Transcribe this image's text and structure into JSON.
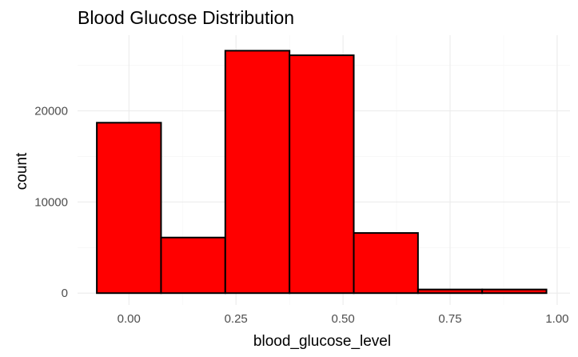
{
  "chart_data": {
    "type": "bar",
    "title": "Blood Glucose Distribution",
    "xlabel": "blood_glucose_level",
    "ylabel": "count",
    "bin_width": 0.15,
    "bin_centers": [
      0.0,
      0.15,
      0.3,
      0.45,
      0.6,
      0.75,
      0.9
    ],
    "values": [
      18700,
      6100,
      26600,
      26100,
      6600,
      400,
      400
    ],
    "xlim": [
      -0.12,
      1.03
    ],
    "ylim": [
      -1300,
      28300
    ],
    "x_ticks": [
      0.0,
      0.25,
      0.5,
      0.75,
      1.0
    ],
    "x_tick_labels": [
      "0.00",
      "0.25",
      "0.50",
      "0.75",
      "1.00"
    ],
    "y_ticks": [
      0,
      10000,
      20000
    ],
    "y_tick_labels": [
      "0",
      "10000",
      "20000"
    ],
    "bar_fill": "#ff0000",
    "bar_outline": "#000000",
    "grid": true,
    "legend": "none"
  }
}
